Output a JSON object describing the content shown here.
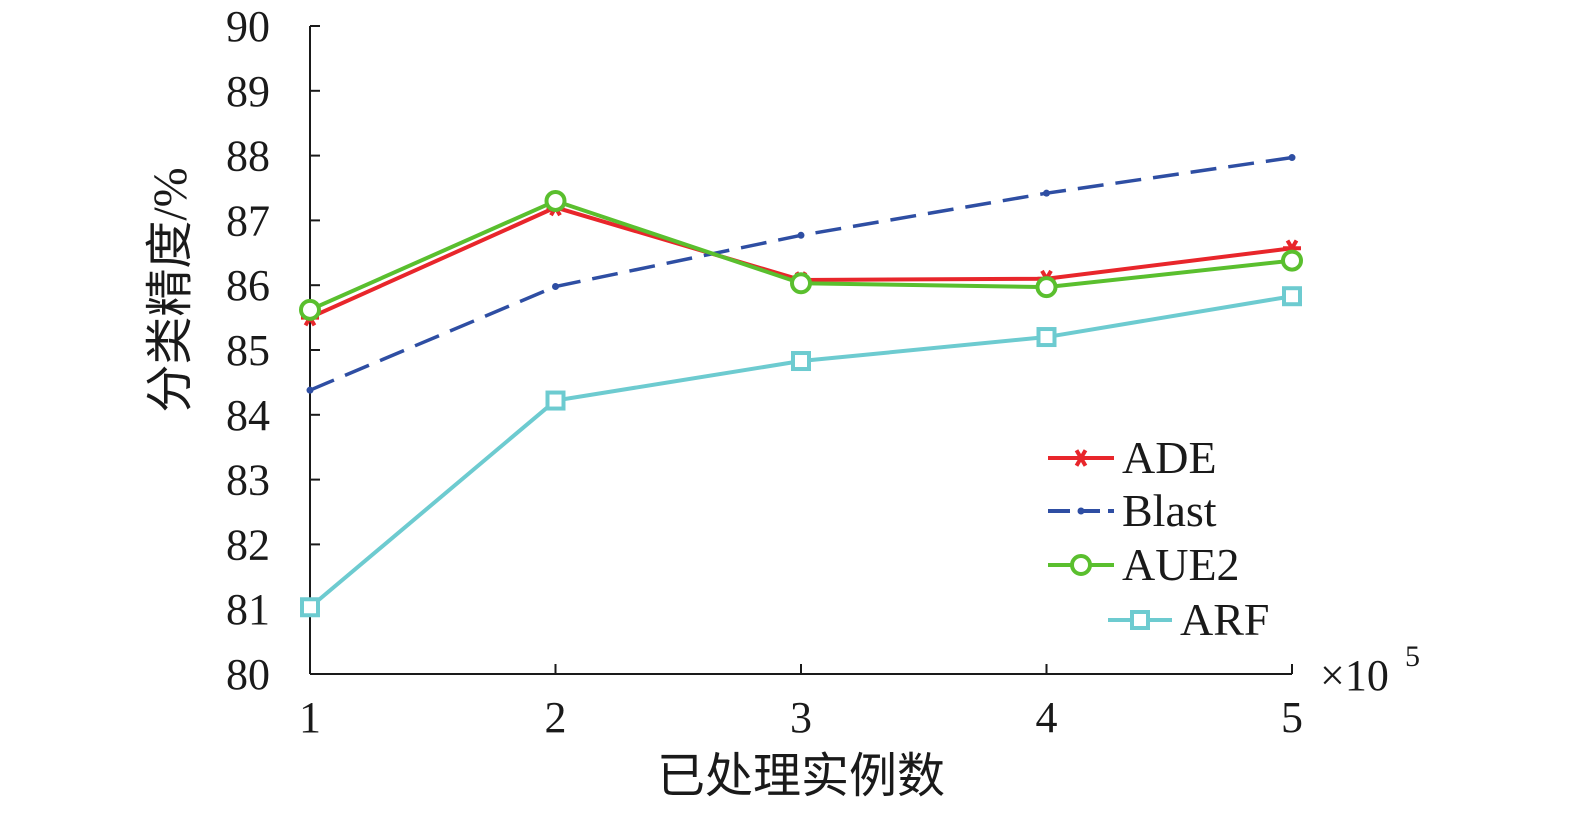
{
  "chart_data": {
    "type": "line",
    "title": "",
    "xlabel": "已处理实例数",
    "ylabel": "分类精度/%",
    "x_multiplier_label": "×10",
    "x_multiplier_exponent": "5",
    "x": [
      1,
      2,
      3,
      4,
      5
    ],
    "x_tick_labels": [
      "1",
      "2",
      "3",
      "4",
      "5"
    ],
    "xlim": [
      1,
      5
    ],
    "ylim": [
      80,
      90
    ],
    "y_ticks": [
      80,
      81,
      82,
      83,
      84,
      85,
      86,
      87,
      88,
      89,
      90
    ],
    "y_tick_labels": [
      "80",
      "81",
      "82",
      "83",
      "84",
      "85",
      "86",
      "87",
      "88",
      "89",
      "90"
    ],
    "grid": false,
    "legend_position": "right",
    "series": [
      {
        "name": "ADE",
        "values": [
          85.5,
          87.2,
          86.08,
          86.1,
          86.57
        ],
        "color": "#e8262b",
        "dash": "solid",
        "marker": "asterisk"
      },
      {
        "name": "Blast",
        "values": [
          84.38,
          85.98,
          86.77,
          87.42,
          87.97
        ],
        "color": "#2e4ea3",
        "dash": "dashdot",
        "marker": "dot"
      },
      {
        "name": "AUE2",
        "values": [
          85.62,
          87.3,
          86.03,
          85.97,
          86.38
        ],
        "color": "#5abf2e",
        "dash": "solid",
        "marker": "circle"
      },
      {
        "name": "ARF",
        "values": [
          81.03,
          84.22,
          84.83,
          85.2,
          85.83
        ],
        "color": "#6dcbd0",
        "dash": "solid",
        "marker": "square"
      }
    ]
  }
}
